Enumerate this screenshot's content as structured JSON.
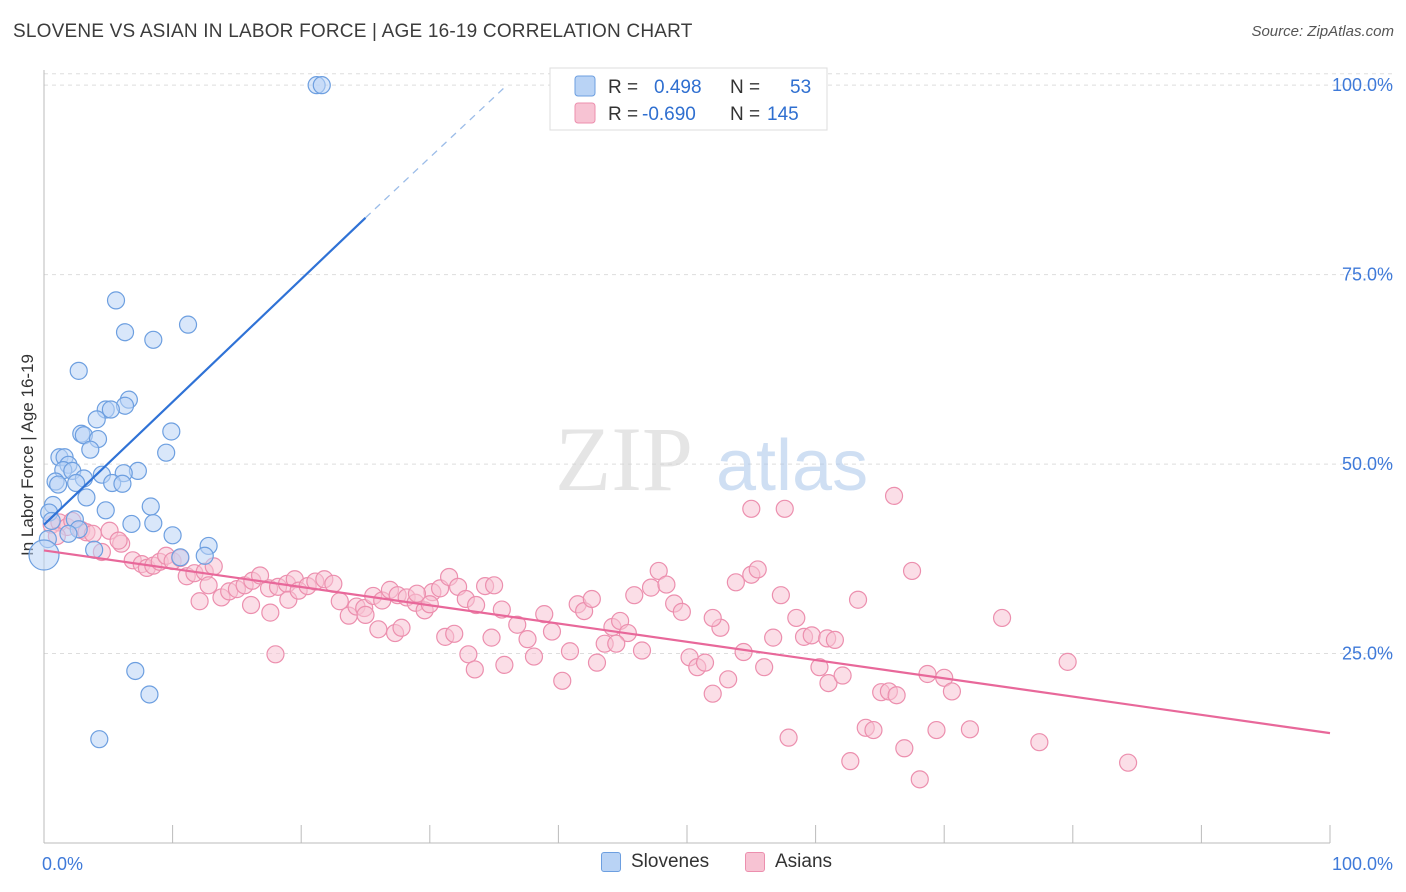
{
  "header": {
    "title": "SLOVENE VS ASIAN IN LABOR FORCE | AGE 16-19 CORRELATION CHART",
    "source": "Source: ZipAtlas.com"
  },
  "watermark": {
    "zip": "ZIP",
    "atlas": "atlas"
  },
  "colors": {
    "blue_fill": "#b9d3f5",
    "blue_stroke": "#6d9fe0",
    "blue_line": "#2f72d6",
    "pink_fill": "#f7c3d3",
    "pink_stroke": "#ec8fae",
    "pink_line": "#e8689a",
    "axis_text": "#3f7ad9",
    "grid": "#dddddd"
  },
  "legend": {
    "rows": [
      {
        "r_label": "R =",
        "r_value": "0.498",
        "n_label": "N =",
        "n_value": "53"
      },
      {
        "r_label": "R =",
        "r_value": "-0.690",
        "n_label": "N =",
        "n_value": "145"
      }
    ]
  },
  "bottom_legend": {
    "series1": "Slovenes",
    "series2": "Asians"
  },
  "chart_data": {
    "type": "scatter",
    "title": "SLOVENE VS ASIAN IN LABOR FORCE | AGE 16-19 CORRELATION CHART",
    "xlabel": "",
    "ylabel": "In Labor Force | Age 16-19",
    "xlim": [
      0,
      100
    ],
    "ylim": [
      0,
      102
    ],
    "x_tick_labels": [
      "0.0%",
      "100.0%"
    ],
    "y_tick_labels": [
      "25.0%",
      "50.0%",
      "75.0%",
      "100.0%"
    ],
    "y_ticks": [
      25,
      50,
      75,
      100
    ],
    "grid": true,
    "legend_position": "top-center",
    "series": [
      {
        "name": "Slovenes",
        "R": 0.498,
        "N": 53,
        "trend": {
          "x": [
            0,
            25
          ],
          "y": [
            42,
            82.5
          ],
          "dashed_to": [
            36,
            100
          ]
        },
        "points": [
          [
            21.2,
            100
          ],
          [
            21.6,
            100
          ],
          [
            5.6,
            71.6
          ],
          [
            6.3,
            67.4
          ],
          [
            8.5,
            66.4
          ],
          [
            11.2,
            68.4
          ],
          [
            2.7,
            62.3
          ],
          [
            6.6,
            58.5
          ],
          [
            6.3,
            57.7
          ],
          [
            4.8,
            57.2
          ],
          [
            5.2,
            57.2
          ],
          [
            4.1,
            55.9
          ],
          [
            9.9,
            54.3
          ],
          [
            2.9,
            54.0
          ],
          [
            3.1,
            53.8
          ],
          [
            4.2,
            53.3
          ],
          [
            3.6,
            51.9
          ],
          [
            9.5,
            51.5
          ],
          [
            1.2,
            50.9
          ],
          [
            1.6,
            50.9
          ],
          [
            1.9,
            49.9
          ],
          [
            1.5,
            49.2
          ],
          [
            2.2,
            49.1
          ],
          [
            7.3,
            49.1
          ],
          [
            6.2,
            48.8
          ],
          [
            4.5,
            48.6
          ],
          [
            3.1,
            48.1
          ],
          [
            0.9,
            47.7
          ],
          [
            1.1,
            47.3
          ],
          [
            2.5,
            47.5
          ],
          [
            5.3,
            47.5
          ],
          [
            6.1,
            47.4
          ],
          [
            3.3,
            45.6
          ],
          [
            8.3,
            44.4
          ],
          [
            0.7,
            44.6
          ],
          [
            0.4,
            43.6
          ],
          [
            4.8,
            43.9
          ],
          [
            2.4,
            42.7
          ],
          [
            0.6,
            42.5
          ],
          [
            8.5,
            42.2
          ],
          [
            6.8,
            42.1
          ],
          [
            2.7,
            41.4
          ],
          [
            1.9,
            40.8
          ],
          [
            10.0,
            40.6
          ],
          [
            0.3,
            40.1
          ],
          [
            12.8,
            39.2
          ],
          [
            3.9,
            38.7
          ],
          [
            0.0,
            38.0
          ],
          [
            10.6,
            37.7
          ],
          [
            12.5,
            37.9
          ],
          [
            7.1,
            22.7
          ],
          [
            8.2,
            19.6
          ],
          [
            4.3,
            13.7
          ]
        ]
      },
      {
        "name": "Asians",
        "R": -0.69,
        "N": 145,
        "trend": {
          "x": [
            0,
            100
          ],
          "y": [
            38.6,
            14.5
          ]
        },
        "points": [
          [
            0.6,
            42.0
          ],
          [
            1.2,
            42.3
          ],
          [
            1.8,
            41.7
          ],
          [
            2.2,
            42.5
          ],
          [
            2.9,
            41.3
          ],
          [
            3.3,
            41.0
          ],
          [
            3.8,
            40.8
          ],
          [
            1.0,
            40.5
          ],
          [
            5.1,
            41.2
          ],
          [
            6.0,
            39.5
          ],
          [
            5.8,
            39.9
          ],
          [
            4.5,
            38.4
          ],
          [
            6.9,
            37.3
          ],
          [
            7.6,
            36.8
          ],
          [
            8.0,
            36.3
          ],
          [
            8.5,
            36.6
          ],
          [
            9.0,
            37.1
          ],
          [
            9.5,
            37.9
          ],
          [
            10.0,
            37.2
          ],
          [
            10.6,
            37.6
          ],
          [
            11.1,
            35.2
          ],
          [
            11.7,
            35.6
          ],
          [
            12.5,
            35.8
          ],
          [
            13.2,
            36.5
          ],
          [
            12.1,
            31.9
          ],
          [
            12.8,
            34.0
          ],
          [
            13.8,
            32.4
          ],
          [
            14.4,
            33.2
          ],
          [
            15.0,
            33.5
          ],
          [
            15.6,
            34.0
          ],
          [
            16.2,
            34.6
          ],
          [
            16.8,
            35.3
          ],
          [
            17.5,
            33.6
          ],
          [
            18.2,
            33.8
          ],
          [
            18.9,
            34.2
          ],
          [
            19.5,
            34.8
          ],
          [
            16.1,
            31.4
          ],
          [
            17.6,
            30.4
          ],
          [
            19.0,
            32.1
          ],
          [
            19.8,
            33.3
          ],
          [
            20.5,
            33.9
          ],
          [
            21.1,
            34.5
          ],
          [
            21.8,
            34.8
          ],
          [
            22.5,
            34.2
          ],
          [
            23.0,
            31.9
          ],
          [
            23.7,
            30.0
          ],
          [
            24.3,
            31.2
          ],
          [
            24.9,
            31.0
          ],
          [
            25.6,
            32.6
          ],
          [
            26.3,
            32.0
          ],
          [
            26.9,
            33.4
          ],
          [
            27.5,
            32.7
          ],
          [
            28.2,
            32.4
          ],
          [
            28.9,
            31.7
          ],
          [
            29.6,
            30.7
          ],
          [
            30.2,
            33.1
          ],
          [
            30.8,
            33.6
          ],
          [
            31.5,
            35.1
          ],
          [
            32.2,
            33.8
          ],
          [
            32.8,
            32.2
          ],
          [
            33.6,
            31.4
          ],
          [
            34.3,
            33.9
          ],
          [
            35.0,
            34.0
          ],
          [
            35.6,
            30.8
          ],
          [
            25.0,
            30.1
          ],
          [
            26.0,
            28.2
          ],
          [
            27.3,
            27.7
          ],
          [
            27.8,
            28.4
          ],
          [
            29.0,
            32.9
          ],
          [
            30.0,
            31.5
          ],
          [
            31.2,
            27.2
          ],
          [
            31.9,
            27.6
          ],
          [
            33.0,
            24.9
          ],
          [
            33.5,
            22.9
          ],
          [
            34.8,
            27.1
          ],
          [
            35.8,
            23.5
          ],
          [
            36.8,
            28.8
          ],
          [
            37.6,
            26.9
          ],
          [
            38.1,
            24.6
          ],
          [
            38.9,
            30.2
          ],
          [
            39.5,
            27.9
          ],
          [
            40.3,
            21.4
          ],
          [
            40.9,
            25.3
          ],
          [
            41.5,
            31.5
          ],
          [
            42.0,
            30.6
          ],
          [
            42.6,
            32.2
          ],
          [
            43.0,
            23.8
          ],
          [
            43.6,
            26.3
          ],
          [
            44.2,
            28.5
          ],
          [
            44.8,
            29.3
          ],
          [
            45.4,
            27.7
          ],
          [
            45.9,
            32.7
          ],
          [
            46.5,
            25.4
          ],
          [
            47.2,
            33.7
          ],
          [
            47.8,
            35.9
          ],
          [
            48.4,
            34.1
          ],
          [
            49.0,
            31.6
          ],
          [
            49.6,
            30.5
          ],
          [
            50.2,
            24.5
          ],
          [
            50.8,
            23.2
          ],
          [
            51.4,
            23.8
          ],
          [
            52.0,
            19.7
          ],
          [
            52.6,
            28.4
          ],
          [
            53.2,
            21.6
          ],
          [
            53.8,
            34.4
          ],
          [
            54.4,
            25.2
          ],
          [
            55.0,
            35.4
          ],
          [
            55.5,
            36.1
          ],
          [
            56.0,
            23.2
          ],
          [
            56.7,
            27.1
          ],
          [
            57.3,
            32.7
          ],
          [
            57.9,
            13.9
          ],
          [
            58.5,
            29.7
          ],
          [
            59.1,
            27.2
          ],
          [
            59.7,
            27.4
          ],
          [
            60.3,
            23.2
          ],
          [
            60.9,
            27.0
          ],
          [
            61.5,
            26.8
          ],
          [
            61.0,
            21.1
          ],
          [
            62.1,
            22.1
          ],
          [
            62.7,
            10.8
          ],
          [
            63.3,
            32.1
          ],
          [
            63.9,
            15.2
          ],
          [
            64.5,
            14.9
          ],
          [
            65.1,
            19.9
          ],
          [
            65.7,
            20.0
          ],
          [
            66.3,
            19.5
          ],
          [
            66.9,
            12.5
          ],
          [
            67.5,
            35.9
          ],
          [
            68.1,
            8.4
          ],
          [
            68.7,
            22.3
          ],
          [
            69.4,
            14.9
          ],
          [
            70.0,
            21.8
          ],
          [
            70.6,
            20.0
          ],
          [
            72.0,
            15.0
          ],
          [
            74.5,
            29.7
          ],
          [
            77.4,
            13.3
          ],
          [
            79.6,
            23.9
          ],
          [
            84.3,
            10.6
          ],
          [
            55.0,
            44.1
          ],
          [
            57.6,
            44.1
          ],
          [
            66.1,
            45.8
          ],
          [
            52.0,
            29.7
          ],
          [
            44.5,
            26.3
          ],
          [
            18.0,
            24.9
          ]
        ]
      }
    ]
  }
}
